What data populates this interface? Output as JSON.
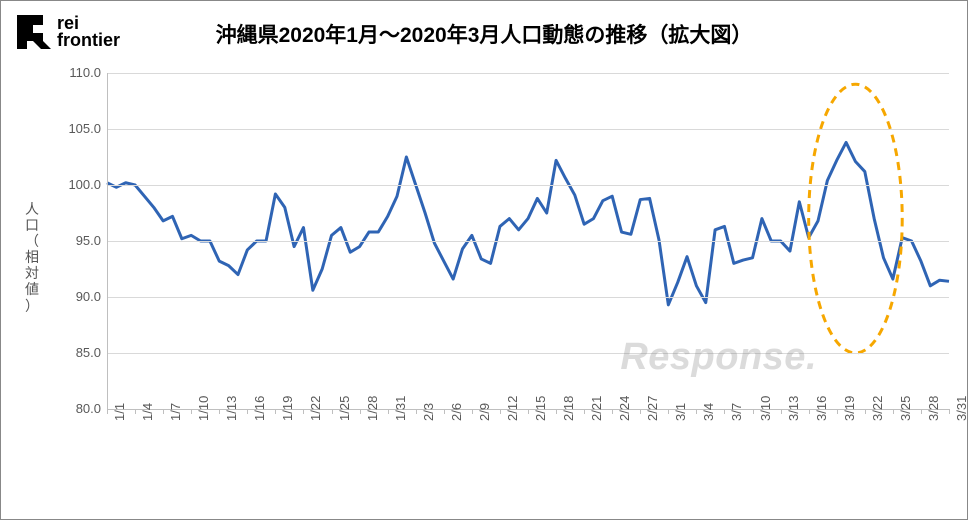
{
  "logo": {
    "line1": "rei",
    "line2": "frontier",
    "fontsize": 18,
    "color": "#000000"
  },
  "title": {
    "text": "沖縄県2020年1月～2020年3月人口動態の推移（拡大図）",
    "fontsize": 21,
    "color": "#000000"
  },
  "ylabel": {
    "text": "人口（相対値）",
    "fontsize": 14,
    "color": "#595959"
  },
  "watermark": {
    "text": "Response.",
    "fontsize": 38,
    "color": "#808080"
  },
  "chart": {
    "type": "line",
    "background_color": "#ffffff",
    "grid_color": "#d9d9d9",
    "axis_color": "#bfbfbf",
    "line_color": "#2f64b4",
    "line_width": 3,
    "ylim": [
      80,
      110
    ],
    "ytick_step": 5,
    "ytick_fontsize": 13,
    "xtick_fontsize": 13,
    "x_labels": [
      "1/1",
      "1/4",
      "1/7",
      "1/10",
      "1/13",
      "1/16",
      "1/19",
      "1/22",
      "1/25",
      "1/28",
      "1/31",
      "2/3",
      "2/6",
      "2/9",
      "2/12",
      "2/15",
      "2/18",
      "2/21",
      "2/24",
      "2/27",
      "3/1",
      "3/4",
      "3/7",
      "3/10",
      "3/13",
      "3/16",
      "3/19",
      "3/22",
      "3/25",
      "3/28",
      "3/31"
    ],
    "x_label_step": 3,
    "values": [
      100.2,
      99.8,
      100.2,
      100.0,
      99.0,
      98.0,
      96.8,
      97.2,
      95.2,
      95.5,
      95.0,
      95.0,
      93.2,
      92.8,
      92.0,
      94.2,
      95.0,
      95.0,
      99.2,
      98.0,
      94.5,
      96.2,
      90.6,
      92.5,
      95.5,
      96.2,
      94.0,
      94.5,
      95.8,
      95.8,
      97.2,
      99.0,
      102.5,
      100.0,
      97.5,
      94.8,
      93.2,
      91.6,
      94.3,
      95.5,
      93.4,
      93.0,
      96.3,
      97.0,
      96.0,
      97.0,
      98.8,
      97.5,
      102.2,
      100.6,
      99.1,
      96.5,
      97.0,
      98.6,
      99.0,
      95.8,
      95.6,
      98.7,
      98.8,
      95.1,
      89.3,
      91.3,
      93.6,
      91.0,
      89.5,
      96.0,
      96.3,
      93.0,
      93.3,
      93.5,
      97.0,
      95.0,
      95.0,
      94.1,
      98.5,
      95.3,
      96.8,
      100.4,
      102.2,
      103.8,
      102.1,
      101.2,
      97.0,
      93.5,
      91.6,
      95.3,
      95.0,
      93.2,
      91.0,
      91.5,
      91.4
    ],
    "highlight_ellipse": {
      "cx_index": 80,
      "cy_value": 97,
      "rx_days": 5,
      "ry_value": 12,
      "color": "#f6a700",
      "stroke_width": 3,
      "dash": "8 6"
    }
  }
}
